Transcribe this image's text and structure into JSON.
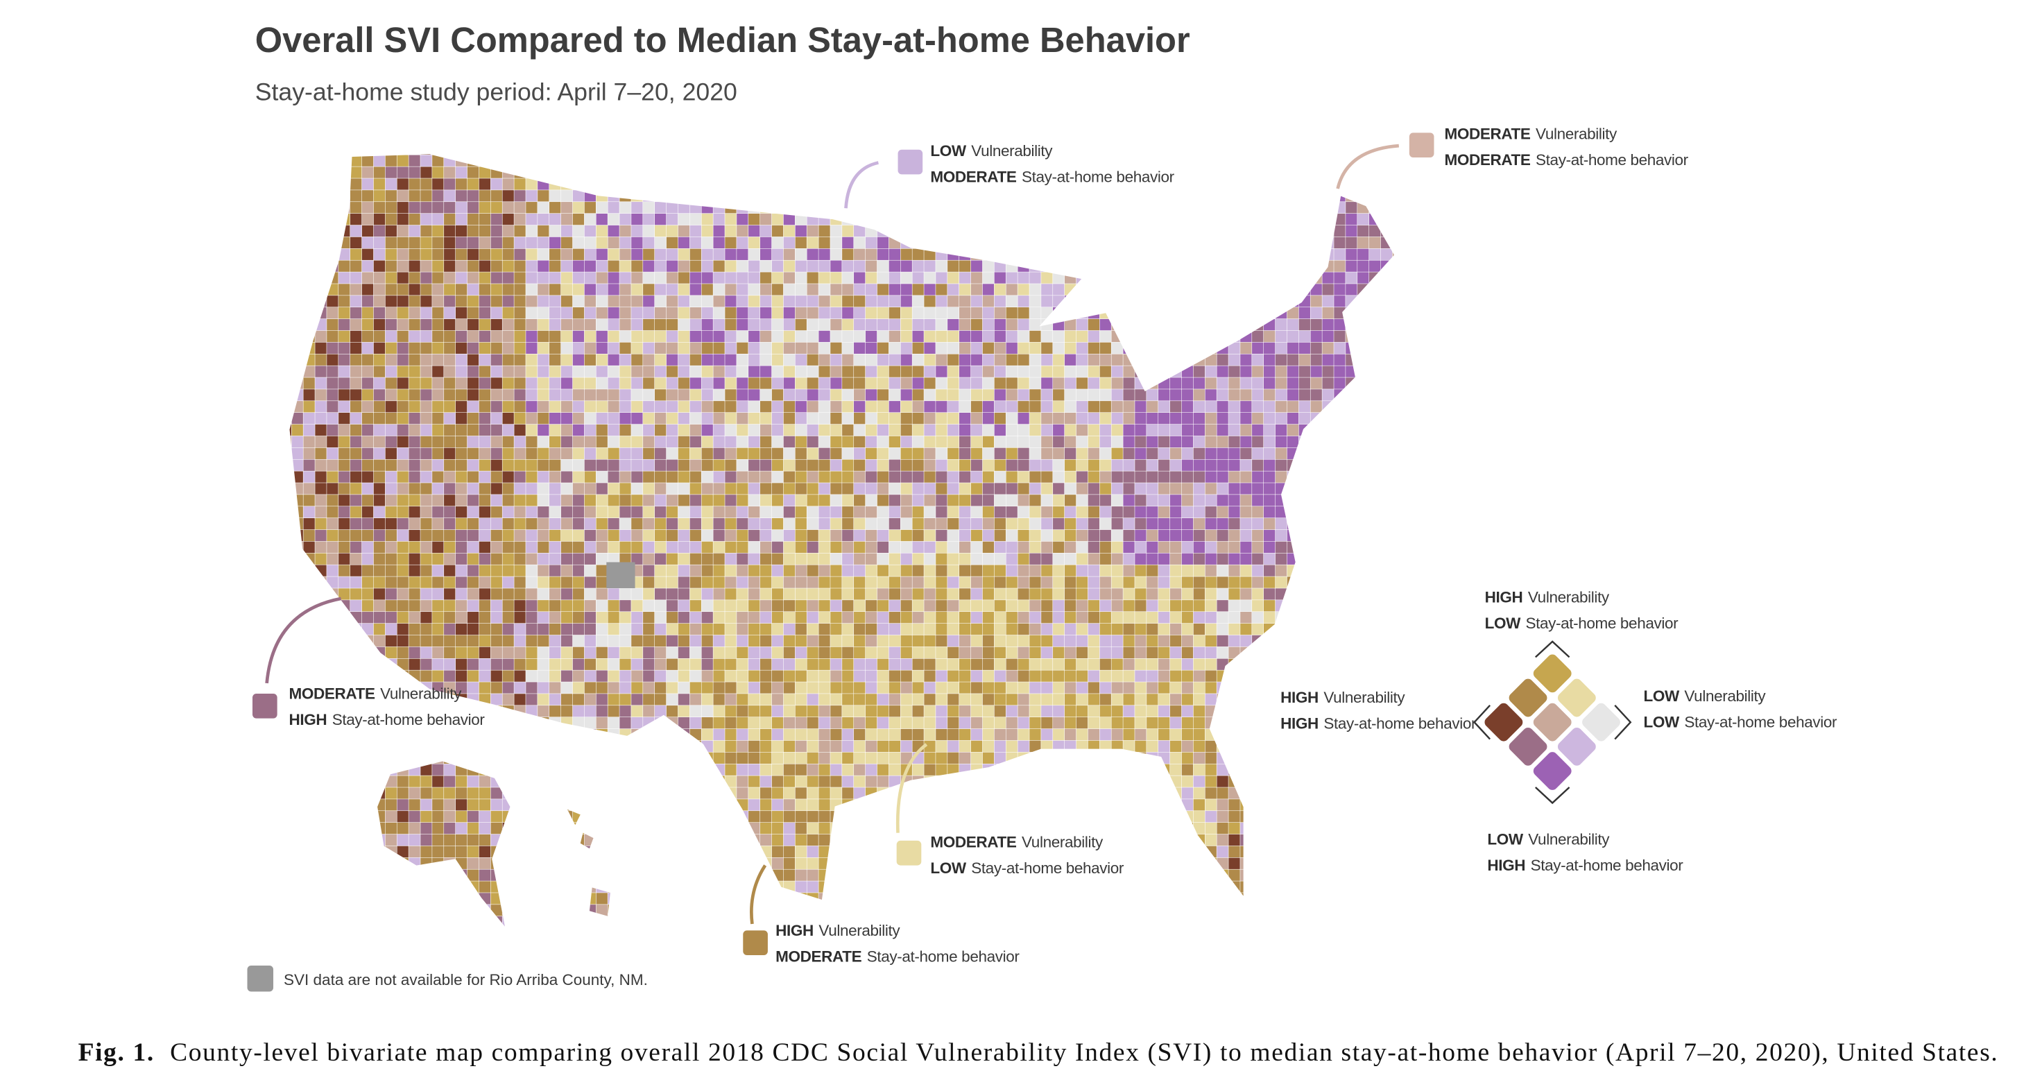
{
  "title": "Overall SVI Compared to Median Stay-at-home Behavior",
  "subtitle": "Stay-at-home study period:  April 7–20, 2020",
  "callouts": [
    {
      "lines": [
        {
          "level": "LOW",
          "label": "Vulnerability"
        },
        {
          "level": "MODERATE",
          "label": "Stay-at-home behavior"
        }
      ]
    },
    {
      "lines": [
        {
          "level": "MODERATE",
          "label": "Vulnerability"
        },
        {
          "level": "MODERATE",
          "label": "Stay-at-home behavior"
        }
      ]
    },
    {
      "lines": [
        {
          "level": "MODERATE",
          "label": "Vulnerability"
        },
        {
          "level": "HIGH",
          "label": "Stay-at-home behavior"
        }
      ]
    },
    {
      "lines": [
        {
          "level": "MODERATE",
          "label": "Vulnerability"
        },
        {
          "level": "LOW",
          "label": "Stay-at-home behavior"
        }
      ]
    },
    {
      "lines": [
        {
          "level": "HIGH",
          "label": "Vulnerability"
        },
        {
          "level": "MODERATE",
          "label": "Stay-at-home behavior"
        }
      ]
    }
  ],
  "legend": [
    {
      "lines": [
        {
          "level": "HIGH",
          "label": "Vulnerability"
        },
        {
          "level": "LOW",
          "label": "Stay-at-home behavior"
        }
      ]
    },
    {
      "lines": [
        {
          "level": "HIGH",
          "label": "Vulnerability"
        },
        {
          "level": "HIGH",
          "label": "Stay-at-home behavior"
        }
      ]
    },
    {
      "lines": [
        {
          "level": "LOW",
          "label": "Vulnerability"
        },
        {
          "level": "LOW",
          "label": "Stay-at-home behavior"
        }
      ]
    },
    {
      "lines": [
        {
          "level": "LOW",
          "label": "Vulnerability"
        },
        {
          "level": "HIGH",
          "label": "Stay-at-home behavior"
        }
      ]
    }
  ],
  "note": "SVI data are not available for Rio Arriba County, NM.",
  "caption": {
    "label": "Fig. 1.",
    "text": "County-level bivariate map comparing overall 2018 CDC Social Vulnerability Index (SVI) to median stay-at-home behavior (April 7–20, 2020), United States."
  }
}
